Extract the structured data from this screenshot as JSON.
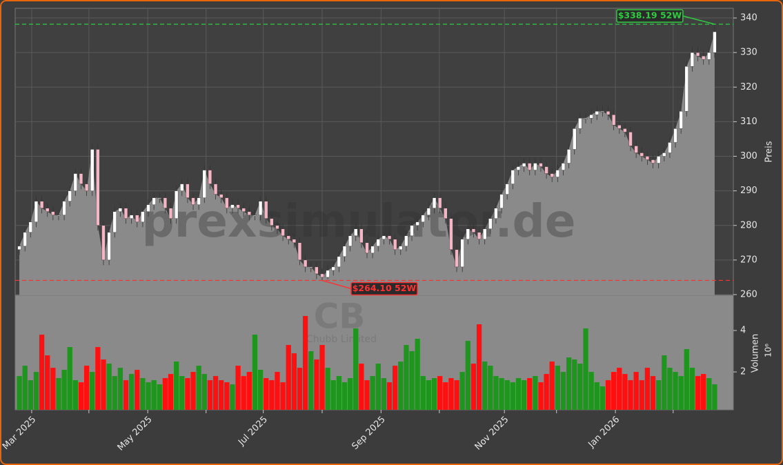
{
  "chart_data": {
    "type": "candlestick",
    "watermark": "prexsimulator.de",
    "symbol": "CB",
    "company": "Chubb Limited",
    "y_label": "Preis",
    "volume_label": "Volumen",
    "volume_exponent": "10⁶",
    "colors": {
      "up": "#ffffff",
      "down": "#f4b6c4",
      "volume_up": "#1e961e",
      "volume_down": "#ff1010",
      "area": "#8a8a8a"
    },
    "grid": true,
    "xticks": [
      {
        "value": 2.2,
        "label": "Mar 2025"
      },
      {
        "value": 12.4,
        "label": null
      },
      {
        "value": 22.9,
        "label": "May 2025"
      },
      {
        "value": 33.3,
        "label": null
      },
      {
        "value": 43.5,
        "label": "Jul 2025"
      },
      {
        "value": 54,
        "label": null
      },
      {
        "value": 64.5,
        "label": "Sep 2025"
      },
      {
        "value": 74.9,
        "label": null
      },
      {
        "value": 86.5,
        "label": "Nov 2025"
      },
      {
        "value": 95.8,
        "label": null
      },
      {
        "value": 106.3,
        "label": "Jan 2026"
      },
      {
        "value": 116.6,
        "label": null
      }
    ],
    "ylim": [
      259.8,
      342.8
    ],
    "yticks": [
      260,
      270,
      280,
      290,
      300,
      310,
      320,
      330,
      340
    ],
    "volume_ylim": [
      0.17,
      5.7
    ],
    "volume_yticks": [
      2,
      4
    ],
    "annotations": [
      {
        "text": "$338.19 52W",
        "value": 338.19,
        "color": "#2ecc40"
      },
      {
        "text": "$264.10 52W",
        "value": 264.1,
        "color": "#ff3030"
      }
    ],
    "open": [
      273,
      274,
      278,
      281,
      287,
      285,
      284,
      283,
      283,
      287,
      290,
      295,
      292,
      290,
      302,
      280,
      270,
      278,
      284,
      285,
      282,
      283,
      281,
      284,
      286,
      288,
      288,
      285,
      282,
      290,
      292,
      288,
      286,
      288,
      296,
      292,
      289,
      288,
      285,
      286,
      285,
      284,
      283,
      283,
      287,
      282,
      280,
      279,
      277,
      276,
      275,
      270,
      268,
      268,
      266,
      265,
      267,
      268,
      271,
      274,
      277,
      279,
      275,
      272,
      274,
      276,
      277,
      276,
      273,
      274,
      277,
      280,
      281,
      283,
      285,
      288,
      285,
      282,
      273,
      268,
      276,
      279,
      278,
      276,
      279,
      282,
      285,
      289,
      292,
      296,
      297,
      298,
      296,
      298,
      297,
      295,
      294,
      296,
      298,
      302,
      308,
      311,
      311,
      312,
      313,
      313,
      312,
      309,
      308,
      307,
      303,
      301,
      300,
      299,
      298,
      300,
      301,
      304,
      308,
      313,
      326,
      330,
      329,
      328,
      330
    ],
    "high": [
      275.5,
      279.5,
      282.5,
      288.5,
      288.5,
      286.5,
      285.5,
      284.5,
      288.5,
      291.5,
      296.5,
      296.5,
      293.5,
      303.5,
      303.5,
      281.5,
      279.5,
      285.5,
      286.5,
      286.5,
      284.5,
      284.5,
      285.5,
      287.5,
      289.5,
      289.5,
      289.5,
      286.5,
      291.5,
      293.5,
      293.5,
      289.5,
      289.5,
      297.5,
      297.5,
      293.5,
      290.5,
      289.5,
      287.5,
      287.5,
      286.5,
      285.5,
      284.5,
      288.5,
      288.5,
      283.5,
      281.5,
      280.5,
      278.5,
      277.5,
      276.5,
      271.5,
      269.5,
      269.5,
      267.5,
      268.5,
      269.5,
      272.5,
      275.5,
      278.5,
      280.5,
      280.5,
      276.5,
      275.5,
      277.5,
      278.5,
      278.5,
      277.5,
      275.5,
      278.5,
      281.5,
      282.5,
      284.5,
      286.5,
      289.5,
      289.5,
      286.5,
      283.5,
      274.5,
      277.5,
      280.5,
      280.5,
      279.5,
      280.5,
      283.5,
      286.5,
      290.5,
      293.5,
      297.5,
      298.5,
      299.5,
      299.5,
      299.5,
      299.5,
      298.5,
      296.5,
      297.5,
      299.5,
      303.5,
      309.5,
      312.5,
      312.5,
      313.5,
      314.5,
      314.5,
      314.5,
      313.5,
      310.5,
      309.5,
      308.5,
      304.5,
      302.5,
      301.5,
      300.5,
      301.5,
      302.5,
      305.5,
      309.5,
      314.5,
      327.5,
      331.5,
      331.5,
      330.5,
      331.5,
      338.19
    ],
    "low": [
      271.5,
      272.5,
      276.5,
      279.5,
      283.5,
      282.5,
      281.5,
      281.5,
      281.5,
      285.5,
      288.5,
      290.5,
      288.5,
      288.5,
      278.5,
      268.5,
      268.5,
      276.5,
      282.5,
      280.5,
      280.5,
      279.5,
      279.5,
      282.5,
      284.5,
      286.5,
      283.5,
      280.5,
      280.5,
      288.5,
      286.5,
      284.5,
      284.5,
      286.5,
      290.5,
      287.5,
      286.5,
      283.5,
      283.5,
      283.5,
      282.5,
      281.5,
      281.5,
      281.5,
      280.5,
      278.5,
      277.5,
      275.5,
      274.5,
      273.5,
      268.5,
      266.5,
      266.5,
      264.5,
      264.1,
      264.5,
      265.5,
      266.5,
      269.5,
      272.5,
      275.5,
      273.5,
      270.5,
      270.5,
      272.5,
      274.5,
      274.5,
      271.5,
      271.5,
      272.5,
      275.5,
      278.5,
      279.5,
      281.5,
      283.5,
      283.5,
      280.5,
      271.5,
      266.5,
      266.5,
      274.5,
      276.5,
      274.5,
      274.5,
      277.5,
      280.5,
      283.5,
      287.5,
      290.5,
      294.5,
      295.5,
      294.5,
      294.5,
      295.5,
      293.5,
      292.5,
      292.5,
      294.5,
      296.5,
      300.5,
      306.5,
      309.5,
      309.5,
      310.5,
      311.5,
      310.5,
      307.5,
      306.5,
      305.5,
      301.5,
      299.5,
      298.5,
      297.5,
      296.5,
      296.5,
      298.5,
      299.5,
      302.5,
      306.5,
      311.5,
      324.5,
      327.5,
      326.5,
      326.5,
      328.5
    ],
    "close": [
      274,
      278,
      281,
      287,
      285,
      284,
      283,
      283,
      287,
      290,
      295,
      292,
      290,
      302,
      280,
      270,
      278,
      284,
      285,
      282,
      283,
      281,
      284,
      286,
      288,
      288,
      285,
      282,
      290,
      292,
      288,
      286,
      288,
      296,
      292,
      289,
      288,
      285,
      286,
      285,
      284,
      283,
      283,
      287,
      282,
      280,
      279,
      277,
      276,
      275,
      270,
      268,
      268,
      266,
      265,
      267,
      268,
      271,
      274,
      277,
      279,
      275,
      272,
      274,
      276,
      277,
      276,
      273,
      274,
      277,
      280,
      281,
      283,
      285,
      288,
      285,
      282,
      273,
      268,
      276,
      279,
      278,
      276,
      279,
      282,
      285,
      289,
      292,
      296,
      297,
      298,
      296,
      298,
      297,
      295,
      294,
      296,
      298,
      302,
      308,
      311,
      311,
      312,
      313,
      313,
      312,
      309,
      308,
      307,
      303,
      301,
      300,
      299,
      298,
      300,
      301,
      304,
      308,
      313,
      326,
      330,
      329,
      328,
      330,
      336
    ],
    "volume": [
      1.8,
      2.3,
      1.6,
      2.0,
      3.8,
      2.8,
      2.2,
      1.7,
      2.1,
      3.2,
      1.6,
      1.5,
      2.3,
      2.0,
      3.2,
      2.6,
      2.4,
      1.8,
      2.2,
      1.6,
      1.9,
      2.1,
      1.7,
      1.5,
      1.6,
      1.4,
      1.7,
      1.9,
      2.5,
      1.8,
      1.7,
      2.0,
      2.3,
      1.9,
      1.6,
      1.8,
      1.6,
      1.5,
      1.4,
      2.3,
      1.8,
      2.0,
      3.8,
      2.1,
      1.7,
      1.6,
      2.0,
      1.5,
      3.3,
      2.9,
      2.2,
      4.7,
      3.0,
      2.6,
      3.3,
      2.2,
      1.6,
      1.8,
      1.5,
      1.7,
      4.1,
      2.4,
      1.6,
      1.8,
      2.4,
      1.7,
      1.5,
      2.3,
      2.5,
      3.3,
      3.0,
      3.6,
      1.8,
      1.6,
      1.7,
      1.8,
      1.5,
      1.7,
      1.6,
      2.0,
      3.5,
      2.4,
      4.3,
      2.5,
      2.3,
      1.8,
      1.7,
      1.6,
      1.5,
      1.7,
      1.6,
      1.7,
      1.8,
      1.5,
      1.9,
      2.5,
      2.3,
      2.0,
      2.7,
      2.6,
      2.4,
      4.1,
      2.0,
      1.5,
      1.3,
      1.6,
      2.0,
      2.2,
      1.9,
      1.6,
      2.0,
      1.6,
      2.2,
      1.8,
      1.6,
      2.8,
      2.2,
      2.0,
      1.8,
      3.1,
      2.2,
      1.8,
      1.9,
      1.7,
      1.4
    ]
  }
}
